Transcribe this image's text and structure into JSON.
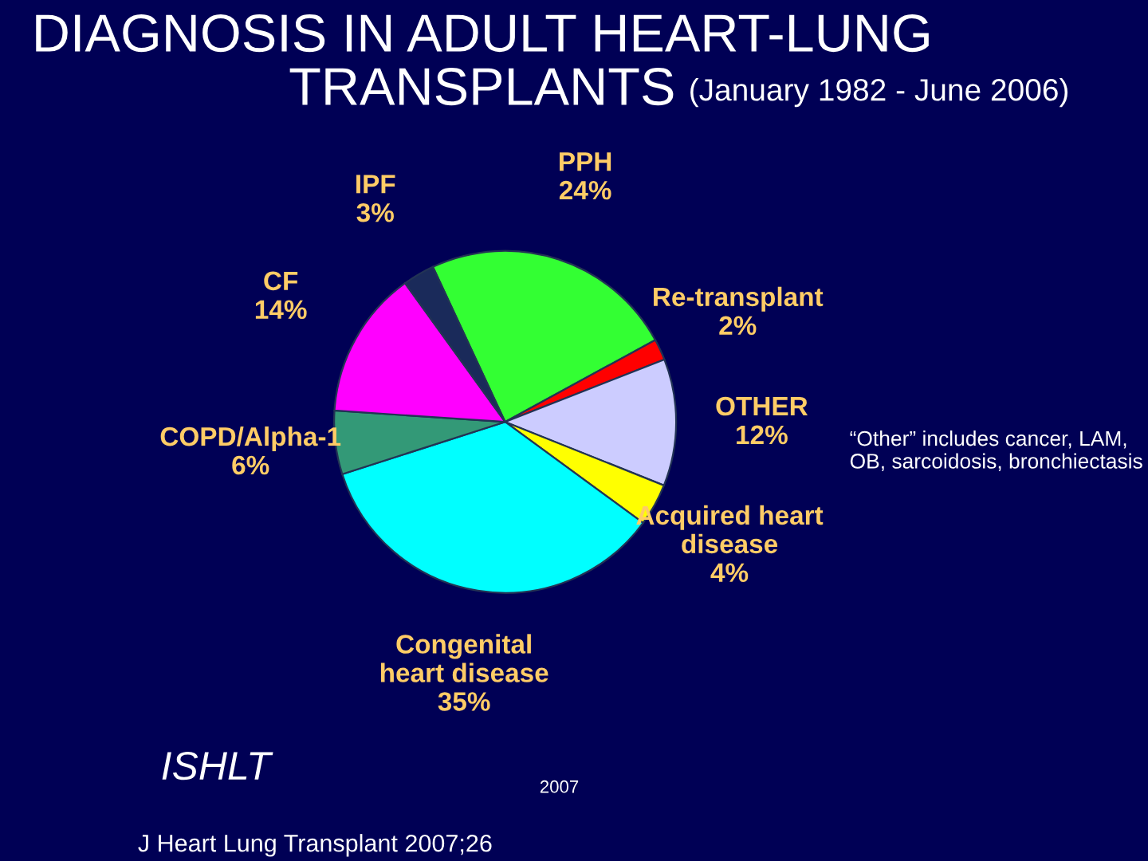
{
  "chart_data": {
    "type": "pie",
    "title": "DIAGNOSIS IN ADULT HEART-LUNG\nTRANSPLANTS",
    "subtitle": "(January 1982 - June 2006)",
    "categories": [
      "PPH",
      "Re-transplant",
      "OTHER",
      "Acquired heart\ndisease",
      "Congenital\nheart disease",
      "COPD/Alpha-1",
      "CF",
      "IPF"
    ],
    "values": [
      24,
      2,
      12,
      4,
      35,
      6,
      14,
      3
    ],
    "value_labels": [
      "24%",
      "2%",
      "12%",
      "4%",
      "35%",
      "6%",
      "14%",
      "3%"
    ],
    "colors": [
      "#33ff33",
      "#ff0000",
      "#ccccff",
      "#ffff00",
      "#00ffff",
      "#339977",
      "#ff00ff",
      "#1a2a5a"
    ],
    "annotations": [
      "“Other” includes cancer, LAM, OB, sarcoidosis, bronchiectasis",
      "ISHLT",
      "2007",
      "J Heart Lung Transplant 2007;26"
    ]
  }
}
